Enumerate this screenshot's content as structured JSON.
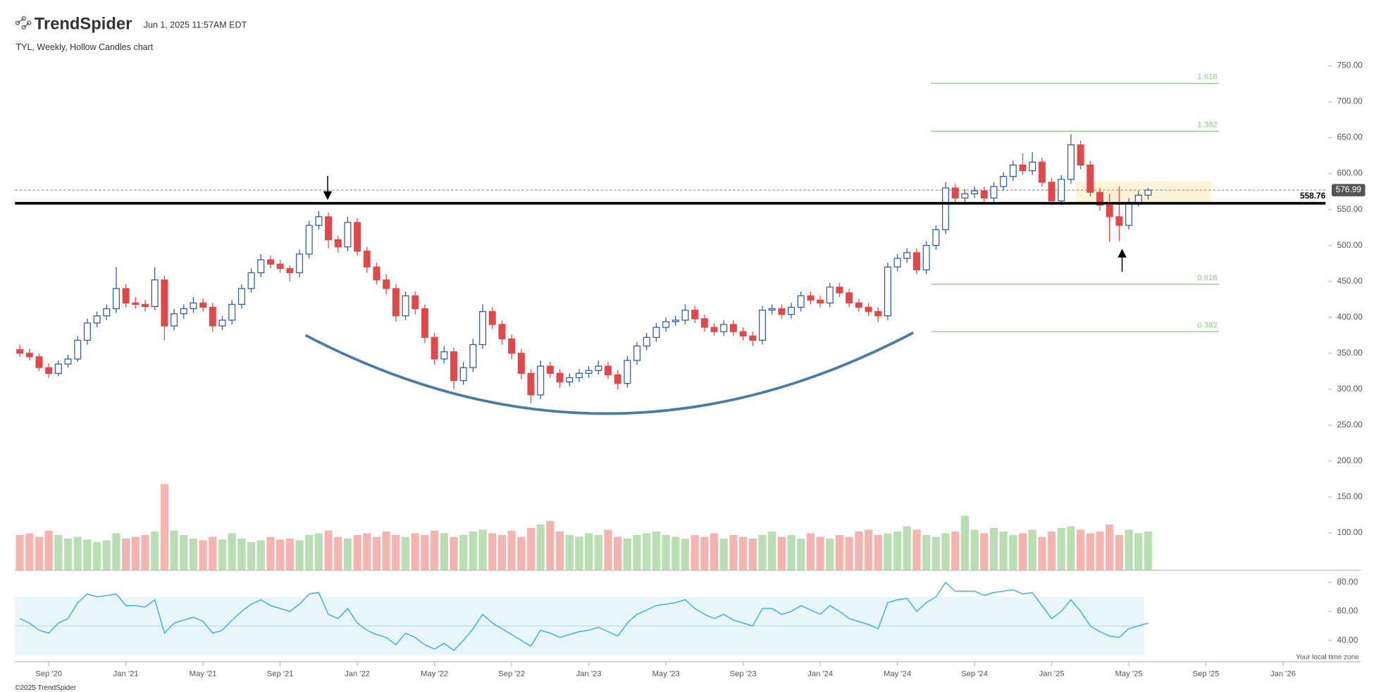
{
  "brand": "TrendSpider",
  "timestamp": "Jun 1, 2025 11:57AM EDT",
  "footer": "©2025 TrendSpider",
  "timezone_note": "Your local time zone",
  "chart_data": {
    "type": "candlestick",
    "title": "TYL, Weekly, Hollow Candles chart",
    "up_color": "#2f5aa8",
    "down_color": "#e0484a",
    "xlim": [
      -1.75,
      66.2
    ],
    "xticks": [
      {
        "value": 0,
        "label": "Sep '20"
      },
      {
        "value": 4,
        "label": "Jan '21"
      },
      {
        "value": 8,
        "label": "May '21"
      },
      {
        "value": 12,
        "label": "Sep '21"
      },
      {
        "value": 16,
        "label": "Jan '22"
      },
      {
        "value": 20,
        "label": "May '22"
      },
      {
        "value": 24,
        "label": "Sep '22"
      },
      {
        "value": 28,
        "label": "Jan '23"
      },
      {
        "value": 32,
        "label": "May '23"
      },
      {
        "value": 36,
        "label": "Sep '23"
      },
      {
        "value": 40,
        "label": "Jan '24"
      },
      {
        "value": 44,
        "label": "May '24"
      },
      {
        "value": 48,
        "label": "Sep '24"
      },
      {
        "value": 52,
        "label": "Jan '25"
      },
      {
        "value": 56,
        "label": "May '25"
      },
      {
        "value": 60,
        "label": "Sep '25"
      },
      {
        "value": 64,
        "label": "Jan '26"
      }
    ],
    "ylim": [
      48,
      762
    ],
    "yticks": [
      {
        "value": 100,
        "label": "100.00"
      },
      {
        "value": 150,
        "label": "150.00"
      },
      {
        "value": 200,
        "label": "200.00"
      },
      {
        "value": 250,
        "label": "250.00"
      },
      {
        "value": 300,
        "label": "300.00"
      },
      {
        "value": 350,
        "label": "350.00"
      },
      {
        "value": 400,
        "label": "400.00"
      },
      {
        "value": 450,
        "label": "450.00"
      },
      {
        "value": 500,
        "label": "500.00"
      },
      {
        "value": 550,
        "label": "550.00"
      },
      {
        "value": 600,
        "label": "600.00"
      },
      {
        "value": 650,
        "label": "650.00"
      },
      {
        "value": 700,
        "label": "700.00"
      },
      {
        "value": 750,
        "label": "750.00"
      }
    ],
    "x": [
      -1.5,
      -1,
      -0.5,
      0,
      0.5,
      1,
      1.5,
      2,
      2.5,
      3,
      3.5,
      4,
      4.5,
      5,
      5.5,
      6,
      6.5,
      7,
      7.5,
      8,
      8.5,
      9,
      9.5,
      10,
      10.5,
      11,
      11.5,
      12,
      12.5,
      13,
      13.5,
      14,
      14.5,
      15,
      15.5,
      16,
      16.5,
      17,
      17.5,
      18,
      18.5,
      19,
      19.5,
      20,
      20.5,
      21,
      21.5,
      22,
      22.5,
      23,
      23.5,
      24,
      24.5,
      25,
      25.5,
      26,
      26.5,
      27,
      27.5,
      28,
      28.5,
      29,
      29.5,
      30,
      30.5,
      31,
      31.5,
      32,
      32.5,
      33,
      33.5,
      34,
      34.5,
      35,
      35.5,
      36,
      36.5,
      37,
      37.5,
      38,
      38.5,
      39,
      39.5,
      40,
      40.5,
      41,
      41.5,
      42,
      42.5,
      43,
      43.5,
      44,
      44.5,
      45,
      45.5,
      46,
      46.5,
      47,
      47.5,
      48,
      48.5,
      49,
      49.5,
      50,
      50.5,
      51,
      51.5,
      52,
      52.5,
      53,
      53.5,
      54,
      54.5,
      55,
      55.5,
      56,
      56.5,
      57
    ],
    "open": [
      355,
      350,
      345,
      330,
      322,
      335,
      342,
      368,
      392,
      402,
      412,
      440,
      420,
      418,
      415,
      452,
      388,
      405,
      412,
      420,
      414,
      388,
      396,
      418,
      440,
      462,
      480,
      474,
      468,
      462,
      488,
      528,
      540,
      508,
      498,
      532,
      492,
      470,
      452,
      440,
      402,
      430,
      412,
      372,
      342,
      352,
      312,
      330,
      362,
      408,
      390,
      370,
      350,
      322,
      292,
      332,
      322,
      310,
      316,
      322,
      326,
      332,
      320,
      308,
      340,
      360,
      372,
      386,
      394,
      396,
      410,
      398,
      386,
      380,
      390,
      380,
      374,
      368,
      410,
      412,
      404,
      414,
      430,
      424,
      420,
      442,
      434,
      420,
      414,
      408,
      402,
      470,
      482,
      490,
      466,
      500,
      522,
      580,
      566,
      572,
      576,
      566,
      582,
      596,
      612,
      604,
      616,
      588,
      562,
      592,
      640,
      612,
      574,
      556,
      540,
      528,
      560,
      570
    ],
    "high": [
      362,
      356,
      350,
      336,
      340,
      348,
      374,
      398,
      408,
      418,
      470,
      446,
      428,
      424,
      470,
      458,
      412,
      418,
      428,
      426,
      420,
      402,
      424,
      446,
      468,
      488,
      486,
      480,
      472,
      494,
      534,
      548,
      546,
      514,
      540,
      538,
      498,
      476,
      460,
      446,
      436,
      436,
      418,
      378,
      360,
      358,
      338,
      370,
      418,
      414,
      396,
      376,
      356,
      328,
      340,
      338,
      328,
      322,
      328,
      332,
      340,
      338,
      326,
      346,
      366,
      378,
      392,
      400,
      402,
      418,
      416,
      404,
      392,
      396,
      396,
      386,
      380,
      416,
      418,
      418,
      420,
      436,
      436,
      430,
      448,
      448,
      440,
      426,
      420,
      414,
      476,
      488,
      496,
      496,
      506,
      528,
      588,
      586,
      578,
      582,
      582,
      588,
      602,
      618,
      628,
      630,
      622,
      594,
      598,
      655,
      646,
      618,
      580,
      572,
      582,
      566,
      576,
      580
    ],
    "low": [
      345,
      340,
      325,
      316,
      318,
      330,
      338,
      362,
      386,
      396,
      406,
      414,
      412,
      408,
      410,
      368,
      382,
      398,
      406,
      408,
      380,
      382,
      390,
      412,
      434,
      456,
      468,
      462,
      450,
      456,
      482,
      522,
      496,
      490,
      492,
      486,
      462,
      446,
      432,
      394,
      396,
      404,
      364,
      334,
      336,
      300,
      306,
      324,
      356,
      384,
      362,
      342,
      314,
      280,
      286,
      316,
      302,
      304,
      310,
      316,
      320,
      314,
      300,
      302,
      334,
      354,
      366,
      380,
      388,
      390,
      392,
      380,
      374,
      374,
      374,
      368,
      360,
      362,
      404,
      398,
      398,
      408,
      418,
      414,
      414,
      428,
      414,
      408,
      402,
      394,
      396,
      464,
      476,
      460,
      460,
      494,
      516,
      560,
      560,
      566,
      560,
      560,
      576,
      590,
      598,
      598,
      582,
      556,
      556,
      586,
      606,
      568,
      548,
      505,
      506,
      522,
      554,
      564
    ],
    "close": [
      350,
      345,
      330,
      322,
      335,
      342,
      368,
      392,
      402,
      412,
      440,
      420,
      418,
      415,
      452,
      388,
      405,
      412,
      420,
      414,
      388,
      396,
      418,
      440,
      462,
      480,
      474,
      468,
      462,
      488,
      528,
      540,
      508,
      498,
      532,
      492,
      470,
      452,
      440,
      402,
      430,
      412,
      372,
      342,
      352,
      312,
      330,
      362,
      408,
      390,
      370,
      350,
      322,
      292,
      332,
      322,
      310,
      316,
      322,
      326,
      332,
      320,
      308,
      340,
      360,
      372,
      386,
      394,
      396,
      410,
      398,
      386,
      380,
      390,
      380,
      374,
      368,
      410,
      412,
      404,
      414,
      430,
      424,
      420,
      442,
      434,
      420,
      414,
      408,
      402,
      470,
      482,
      490,
      466,
      500,
      522,
      580,
      566,
      572,
      576,
      566,
      582,
      596,
      612,
      604,
      616,
      588,
      562,
      592,
      640,
      612,
      574,
      556,
      540,
      528,
      560,
      570,
      576.99
    ],
    "fib_levels": [
      {
        "label": "1.618",
        "value": 725.5
      },
      {
        "label": "1.382",
        "value": 659
      },
      {
        "label": "0.618",
        "value": 446
      },
      {
        "label": "0.382",
        "value": 380
      }
    ],
    "fib_color": "#8cc97e",
    "support": {
      "value": 558.76,
      "label": "558.76"
    },
    "last_price": {
      "value": 576.99,
      "label": "576.99"
    },
    "zone": {
      "low": 558.76,
      "high": 589,
      "color": "#fdf1d0"
    },
    "volume": {
      "ylim": [
        0,
        110
      ],
      "up_color": "#b9deb4",
      "down_color": "#f6b4b1",
      "values": [
        40,
        42,
        38,
        45,
        40,
        36,
        38,
        35,
        32,
        34,
        42,
        36,
        38,
        40,
        44,
        98,
        45,
        40,
        36,
        34,
        38,
        35,
        42,
        36,
        32,
        34,
        38,
        35,
        36,
        34,
        40,
        42,
        45,
        38,
        36,
        40,
        42,
        38,
        44,
        40,
        38,
        42,
        40,
        45,
        42,
        38,
        40,
        44,
        46,
        42,
        40,
        45,
        38,
        48,
        52,
        56,
        44,
        40,
        38,
        42,
        40,
        46,
        38,
        36,
        40,
        42,
        44,
        40,
        38,
        36,
        40,
        38,
        42,
        36,
        40,
        38,
        36,
        40,
        44,
        38,
        40,
        36,
        42,
        38,
        36,
        40,
        38,
        44,
        46,
        40,
        42,
        44,
        50,
        46,
        40,
        38,
        42,
        44,
        62,
        46,
        42,
        48,
        44,
        40,
        42,
        46,
        38,
        44,
        48,
        50,
        46,
        42,
        44,
        52,
        40,
        46,
        42,
        44
      ]
    },
    "rsi": {
      "color": "#3fb0e4",
      "band": [
        30,
        70
      ],
      "band_color": "#e8f6fa",
      "midline": 50,
      "ylim": [
        29.5,
        86
      ],
      "yticks": [
        {
          "value": 40,
          "label": "40.00"
        },
        {
          "value": 60,
          "label": "60.00"
        },
        {
          "value": 80,
          "label": "80.00"
        }
      ],
      "values": [
        55,
        52,
        47,
        45,
        52,
        55,
        66,
        72,
        70,
        71,
        72,
        64,
        64,
        63,
        68,
        45,
        52,
        54,
        56,
        53,
        45,
        47,
        54,
        60,
        65,
        68,
        64,
        62,
        60,
        65,
        72,
        73,
        58,
        55,
        62,
        52,
        47,
        44,
        42,
        37,
        45,
        42,
        37,
        34,
        38,
        33,
        40,
        48,
        58,
        52,
        48,
        44,
        40,
        36,
        47,
        45,
        42,
        44,
        46,
        47,
        49,
        46,
        43,
        52,
        58,
        61,
        64,
        65,
        66,
        68,
        62,
        58,
        55,
        58,
        54,
        52,
        50,
        62,
        62,
        58,
        60,
        64,
        61,
        58,
        64,
        60,
        55,
        53,
        51,
        48,
        66,
        68,
        69,
        60,
        66,
        70,
        80,
        74,
        74,
        74,
        71,
        73,
        74,
        75,
        72,
        73,
        64,
        55,
        60,
        68,
        60,
        50,
        46,
        43,
        42,
        48,
        50,
        52
      ]
    }
  }
}
